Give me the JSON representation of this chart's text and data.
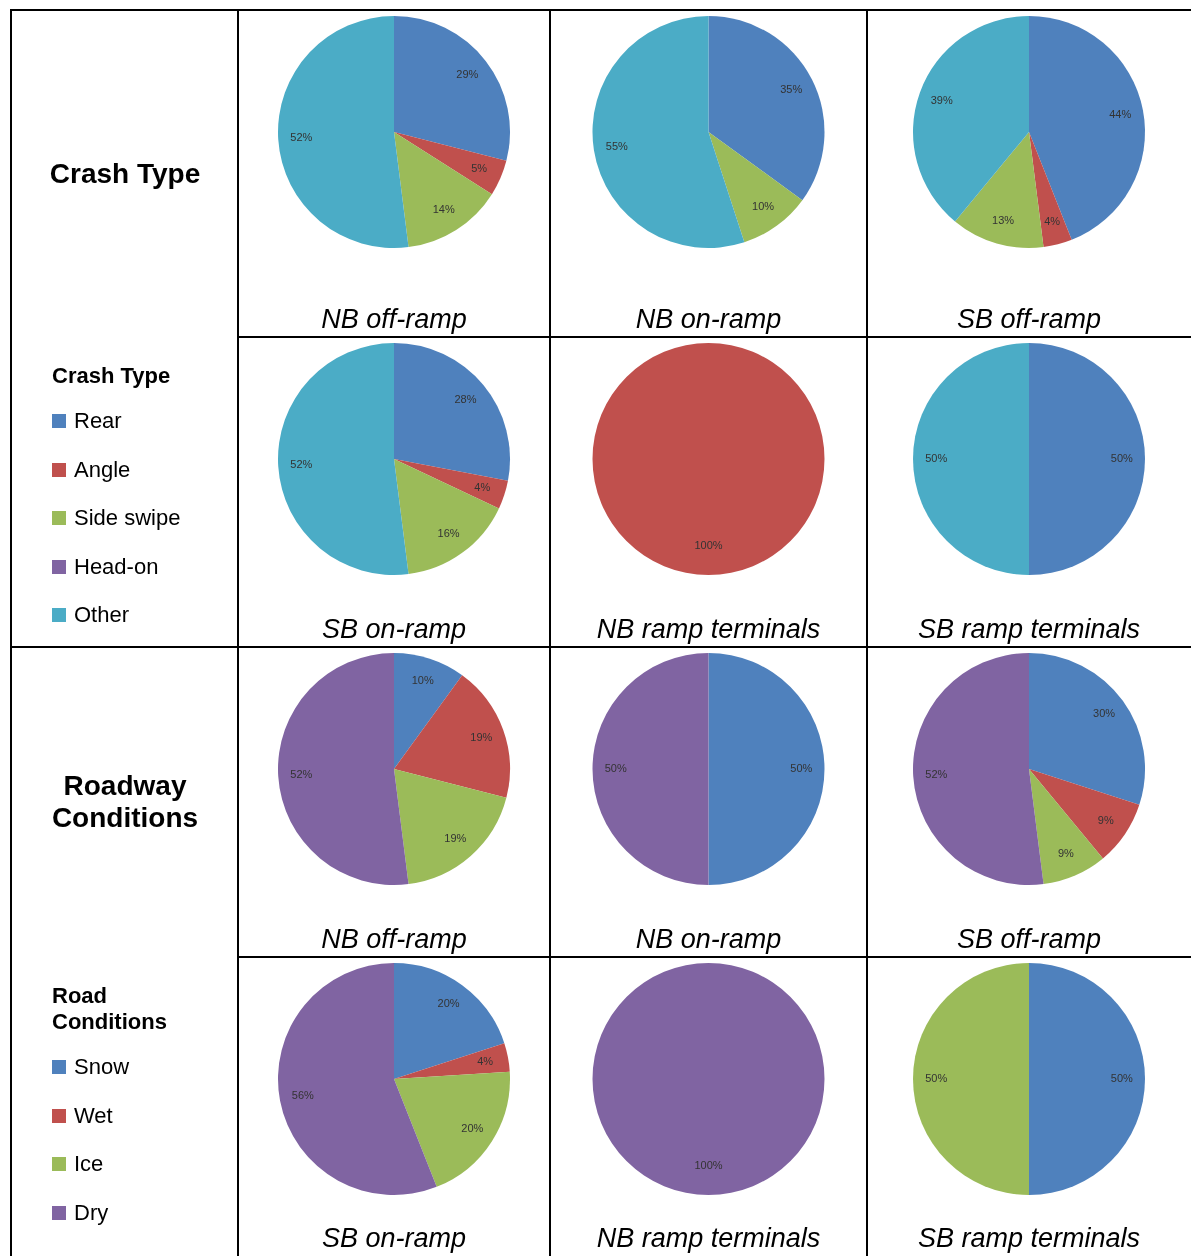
{
  "chart_data": [
    {
      "type": "pie",
      "title": "NB off-ramp",
      "annotations": [
        "Crash Type"
      ],
      "categories": [
        null,
        null,
        null,
        null,
        null
      ],
      "values": [
        29,
        5,
        14,
        0,
        52
      ],
      "value_labels": [
        "29%",
        "5%",
        "14%",
        null,
        "52%"
      ],
      "colors": [
        "#4f81bd",
        "#c0504d",
        "#9bbb59",
        "#8064a2",
        "#4bacc6"
      ]
    },
    {
      "type": "pie",
      "title": "NB on-ramp",
      "categories": [
        null,
        null,
        null,
        null,
        null
      ],
      "values": [
        35,
        0,
        10,
        0,
        55
      ],
      "value_labels": [
        "35%",
        null,
        "10%",
        null,
        "55%"
      ],
      "colors": [
        "#4f81bd",
        "#c0504d",
        "#9bbb59",
        "#8064a2",
        "#4bacc6"
      ]
    },
    {
      "type": "pie",
      "title": "SB off-ramp",
      "categories": [
        null,
        null,
        null,
        null,
        null
      ],
      "values": [
        44,
        4,
        13,
        0,
        39
      ],
      "value_labels": [
        "44%",
        "4%",
        "13%",
        null,
        "39%"
      ],
      "colors": [
        "#4f81bd",
        "#c0504d",
        "#9bbb59",
        "#8064a2",
        "#4bacc6"
      ]
    },
    {
      "type": "pie",
      "title": "SB on-ramp",
      "legend_title": "Crash Type",
      "legend": "left",
      "categories": [
        "Rear",
        "Angle",
        "Side swipe",
        "Head-on",
        "Other"
      ],
      "values": [
        28,
        4,
        16,
        0,
        52
      ],
      "value_labels": [
        "28%",
        "4%",
        "16%",
        null,
        "52%"
      ],
      "colors": [
        "#4f81bd",
        "#c0504d",
        "#9bbb59",
        "#8064a2",
        "#4bacc6"
      ]
    },
    {
      "type": "pie",
      "title": "NB ramp terminals",
      "categories": [
        null,
        null,
        null,
        null,
        null
      ],
      "values": [
        0,
        100,
        0,
        0,
        0
      ],
      "value_labels": [
        null,
        "100%",
        null,
        null,
        null
      ],
      "colors": [
        "#4f81bd",
        "#c0504d",
        "#9bbb59",
        "#8064a2",
        "#4bacc6"
      ]
    },
    {
      "type": "pie",
      "title": "SB ramp terminals",
      "categories": [
        null,
        null,
        null,
        null,
        null
      ],
      "values": [
        50,
        0,
        0,
        0,
        50
      ],
      "value_labels": [
        "50%",
        null,
        null,
        null,
        "50%"
      ],
      "colors": [
        "#4f81bd",
        "#c0504d",
        "#9bbb59",
        "#8064a2",
        "#4bacc6"
      ]
    },
    {
      "type": "pie",
      "title": "NB off-ramp",
      "annotations": [
        "Roadway Conditions"
      ],
      "categories": [
        null,
        null,
        null,
        null
      ],
      "values": [
        10,
        19,
        19,
        52
      ],
      "value_labels": [
        "10%",
        "19%",
        "19%",
        "52%"
      ],
      "colors": [
        "#4f81bd",
        "#c0504d",
        "#9bbb59",
        "#8064a2"
      ]
    },
    {
      "type": "pie",
      "title": "NB on-ramp",
      "categories": [
        null,
        null,
        null,
        null
      ],
      "values": [
        50,
        0,
        0,
        50
      ],
      "value_labels": [
        "50%",
        null,
        null,
        "50%"
      ],
      "colors": [
        "#4f81bd",
        "#c0504d",
        "#9bbb59",
        "#8064a2"
      ]
    },
    {
      "type": "pie",
      "title": "SB off-ramp",
      "categories": [
        null,
        null,
        null,
        null
      ],
      "values": [
        30,
        9,
        9,
        52
      ],
      "value_labels": [
        "30%",
        "9%",
        "9%",
        "52%"
      ],
      "colors": [
        "#4f81bd",
        "#c0504d",
        "#9bbb59",
        "#8064a2"
      ]
    },
    {
      "type": "pie",
      "title": "SB on-ramp",
      "legend_title": "Road Conditions",
      "legend": "left",
      "categories": [
        "Snow",
        "Wet",
        "Ice",
        "Dry"
      ],
      "values": [
        20,
        4,
        20,
        56
      ],
      "value_labels": [
        "20%",
        "4%",
        "20%",
        "56%"
      ],
      "colors": [
        "#4f81bd",
        "#c0504d",
        "#9bbb59",
        "#8064a2"
      ]
    },
    {
      "type": "pie",
      "title": "NB ramp terminals",
      "categories": [
        null,
        null,
        null,
        null
      ],
      "values": [
        0,
        0,
        0,
        100
      ],
      "value_labels": [
        null,
        null,
        null,
        "100%"
      ],
      "colors": [
        "#4f81bd",
        "#c0504d",
        "#9bbb59",
        "#8064a2"
      ]
    },
    {
      "type": "pie",
      "title": "SB ramp terminals",
      "categories": [
        null,
        null,
        null,
        null
      ],
      "values": [
        50,
        0,
        50,
        0
      ],
      "value_labels": [
        "50%",
        null,
        "50%",
        null
      ],
      "colors": [
        "#4f81bd",
        "#c0504d",
        "#9bbb59",
        "#8064a2"
      ]
    }
  ]
}
